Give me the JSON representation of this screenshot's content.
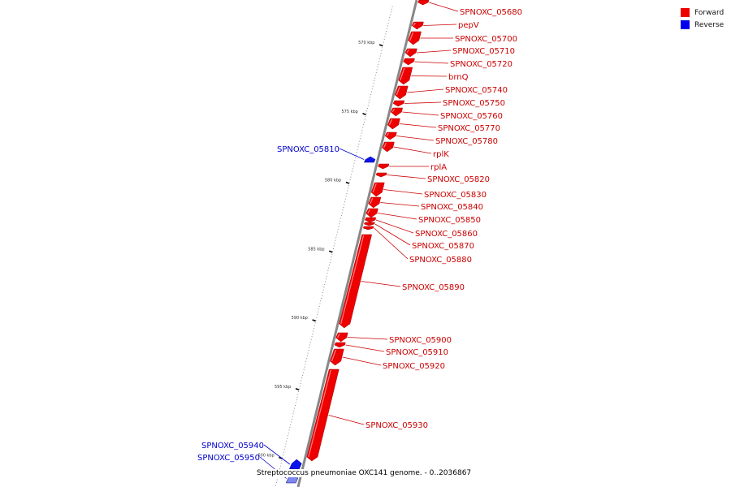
{
  "legend": {
    "items": [
      {
        "label": "Forward",
        "color": "#ee0000"
      },
      {
        "label": "Reverse",
        "color": "#0000ee"
      }
    ]
  },
  "caption": "Streptococcus pneumoniae OXC141 genome. - 0..2036867",
  "colors": {
    "forward": "#ee0000",
    "forward_dark": "#a80000",
    "reverse": "#0a14ee",
    "reverse_light": "#7f88ee",
    "backbone": "#888888",
    "forward_label": "#cc0000",
    "reverse_label": "#0000cc"
  },
  "ticks": [
    {
      "label": "570 kbp",
      "kbp": 570
    },
    {
      "label": "575 kbp",
      "kbp": 575
    },
    {
      "label": "580 kbp",
      "kbp": 580
    },
    {
      "label": "585 kbp",
      "kbp": 585
    },
    {
      "label": "590 kbp",
      "kbp": 590
    },
    {
      "label": "595 kbp",
      "kbp": 595
    },
    {
      "label": "600 kbp",
      "kbp": 600
    }
  ],
  "genes": [
    {
      "name": "SPNOXC_05680",
      "strand": "forward"
    },
    {
      "name": "pepV",
      "strand": "forward"
    },
    {
      "name": "SPNOXC_05700",
      "strand": "forward"
    },
    {
      "name": "SPNOXC_05710",
      "strand": "forward"
    },
    {
      "name": "SPNOXC_05720",
      "strand": "forward"
    },
    {
      "name": "brnQ",
      "strand": "forward"
    },
    {
      "name": "SPNOXC_05740",
      "strand": "forward"
    },
    {
      "name": "SPNOXC_05750",
      "strand": "forward"
    },
    {
      "name": "SPNOXC_05760",
      "strand": "forward"
    },
    {
      "name": "SPNOXC_05770",
      "strand": "forward"
    },
    {
      "name": "SPNOXC_05780",
      "strand": "forward"
    },
    {
      "name": "rplK",
      "strand": "forward"
    },
    {
      "name": "rplA",
      "strand": "forward"
    },
    {
      "name": "SPNOXC_05810",
      "strand": "reverse"
    },
    {
      "name": "SPNOXC_05820",
      "strand": "forward"
    },
    {
      "name": "SPNOXC_05830",
      "strand": "forward"
    },
    {
      "name": "SPNOXC_05840",
      "strand": "forward"
    },
    {
      "name": "SPNOXC_05850",
      "strand": "forward"
    },
    {
      "name": "SPNOXC_05860",
      "strand": "forward"
    },
    {
      "name": "SPNOXC_05870",
      "strand": "forward"
    },
    {
      "name": "SPNOXC_05880",
      "strand": "forward"
    },
    {
      "name": "SPNOXC_05890",
      "strand": "forward"
    },
    {
      "name": "SPNOXC_05900",
      "strand": "forward"
    },
    {
      "name": "SPNOXC_05910",
      "strand": "forward"
    },
    {
      "name": "SPNOXC_05920",
      "strand": "forward"
    },
    {
      "name": "SPNOXC_05930",
      "strand": "forward"
    },
    {
      "name": "SPNOXC_05940",
      "strand": "reverse"
    },
    {
      "name": "SPNOXC_05950",
      "strand": "reverse"
    }
  ]
}
